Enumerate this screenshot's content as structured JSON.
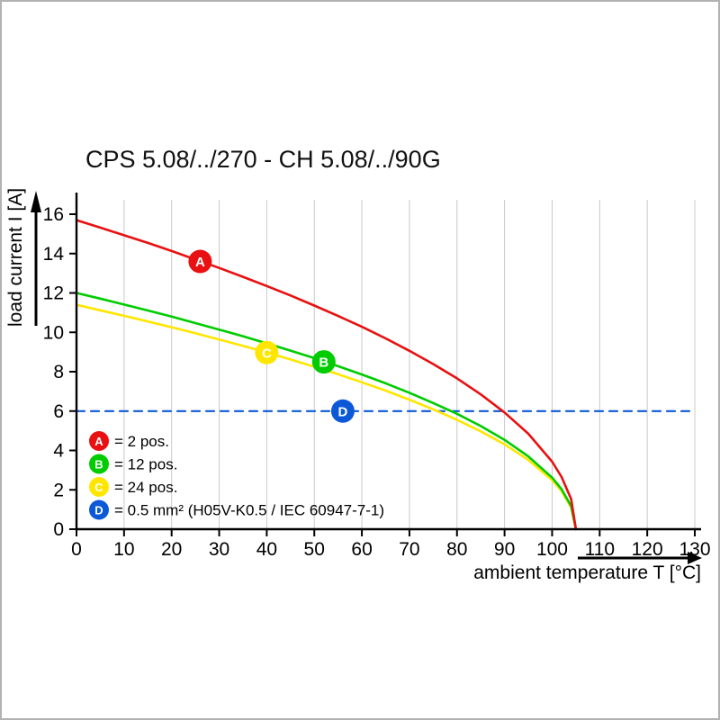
{
  "chart_data": {
    "type": "line",
    "title": "CPS 5.08/../270 - CH 5.08/../90G",
    "xlabel": "ambient temperature T [°C]",
    "ylabel": "load current I [A]",
    "xlim": [
      0,
      130
    ],
    "ylim": [
      0,
      16
    ],
    "xticks": [
      0,
      10,
      20,
      30,
      40,
      50,
      60,
      70,
      80,
      90,
      100,
      110,
      120,
      130
    ],
    "yticks": [
      0,
      2,
      4,
      6,
      8,
      10,
      12,
      14,
      16
    ],
    "grid": "vertical",
    "grid_color": "#c9c9c9",
    "axis_color": "#000000",
    "series": [
      {
        "id": "A",
        "name": "2 pos.",
        "color": "#e81010",
        "marker": {
          "x": 26,
          "y": 13.6
        },
        "points": [
          [
            0,
            15.7
          ],
          [
            5,
            15.32
          ],
          [
            10,
            14.93
          ],
          [
            15,
            14.54
          ],
          [
            20,
            14.13
          ],
          [
            25,
            13.7
          ],
          [
            30,
            13.27
          ],
          [
            35,
            12.82
          ],
          [
            40,
            12.35
          ],
          [
            45,
            11.87
          ],
          [
            50,
            11.36
          ],
          [
            55,
            10.83
          ],
          [
            60,
            10.28
          ],
          [
            65,
            9.69
          ],
          [
            70,
            9.06
          ],
          [
            75,
            8.39
          ],
          [
            80,
            7.66
          ],
          [
            85,
            6.85
          ],
          [
            90,
            5.93
          ],
          [
            95,
            4.85
          ],
          [
            100,
            3.43
          ],
          [
            102,
            2.65
          ],
          [
            104,
            1.53
          ],
          [
            105,
            0
          ]
        ]
      },
      {
        "id": "B",
        "name": "12 pos.",
        "color": "#00cc00",
        "marker": {
          "x": 52,
          "y": 8.5
        },
        "points": [
          [
            0,
            12
          ],
          [
            5,
            11.71
          ],
          [
            10,
            11.41
          ],
          [
            15,
            11.11
          ],
          [
            20,
            10.8
          ],
          [
            25,
            10.47
          ],
          [
            30,
            10.14
          ],
          [
            35,
            9.8
          ],
          [
            40,
            9.44
          ],
          [
            45,
            9.07
          ],
          [
            50,
            8.69
          ],
          [
            55,
            8.28
          ],
          [
            60,
            7.86
          ],
          [
            65,
            7.41
          ],
          [
            70,
            6.93
          ],
          [
            75,
            6.41
          ],
          [
            80,
            5.86
          ],
          [
            85,
            5.24
          ],
          [
            90,
            4.54
          ],
          [
            95,
            3.7
          ],
          [
            100,
            2.62
          ],
          [
            102,
            2.03
          ],
          [
            104,
            1.17
          ],
          [
            105,
            0
          ]
        ]
      },
      {
        "id": "C",
        "name": "24 pos.",
        "color": "#ffe600",
        "marker": {
          "x": 40,
          "y": 8.97
        },
        "points": [
          [
            0,
            11.4
          ],
          [
            5,
            11.12
          ],
          [
            10,
            10.84
          ],
          [
            15,
            10.55
          ],
          [
            20,
            10.26
          ],
          [
            25,
            9.95
          ],
          [
            30,
            9.63
          ],
          [
            35,
            9.31
          ],
          [
            40,
            8.97
          ],
          [
            45,
            8.62
          ],
          [
            50,
            8.25
          ],
          [
            55,
            7.87
          ],
          [
            60,
            7.46
          ],
          [
            65,
            7.04
          ],
          [
            70,
            6.58
          ],
          [
            75,
            6.09
          ],
          [
            80,
            5.56
          ],
          [
            85,
            4.97
          ],
          [
            90,
            4.31
          ],
          [
            95,
            3.52
          ],
          [
            100,
            2.49
          ],
          [
            102,
            1.93
          ],
          [
            104,
            1.11
          ],
          [
            105,
            0
          ]
        ]
      },
      {
        "id": "D",
        "name": "0.5 mm² (H05V-K0.5 / IEC 60947-7-1)",
        "color": "#0c59d8",
        "style": "dashed",
        "marker": {
          "x": 56,
          "y": 6
        },
        "points": [
          [
            0,
            6
          ],
          [
            130,
            6
          ]
        ]
      }
    ],
    "legend_position": "inside-bottom-left",
    "legend": [
      {
        "id": "A",
        "color": "#e81010",
        "label": "= 2 pos."
      },
      {
        "id": "B",
        "color": "#00cc00",
        "label": "= 12 pos."
      },
      {
        "id": "C",
        "color": "#ffe600",
        "label": "= 24 pos."
      },
      {
        "id": "D",
        "color": "#0c59d8",
        "label": "= 0.5 mm² (H05V-K0.5 / IEC 60947-7-1)"
      }
    ]
  },
  "frame": {
    "background": "#ffffff",
    "border_color": "#b2b2b2"
  }
}
